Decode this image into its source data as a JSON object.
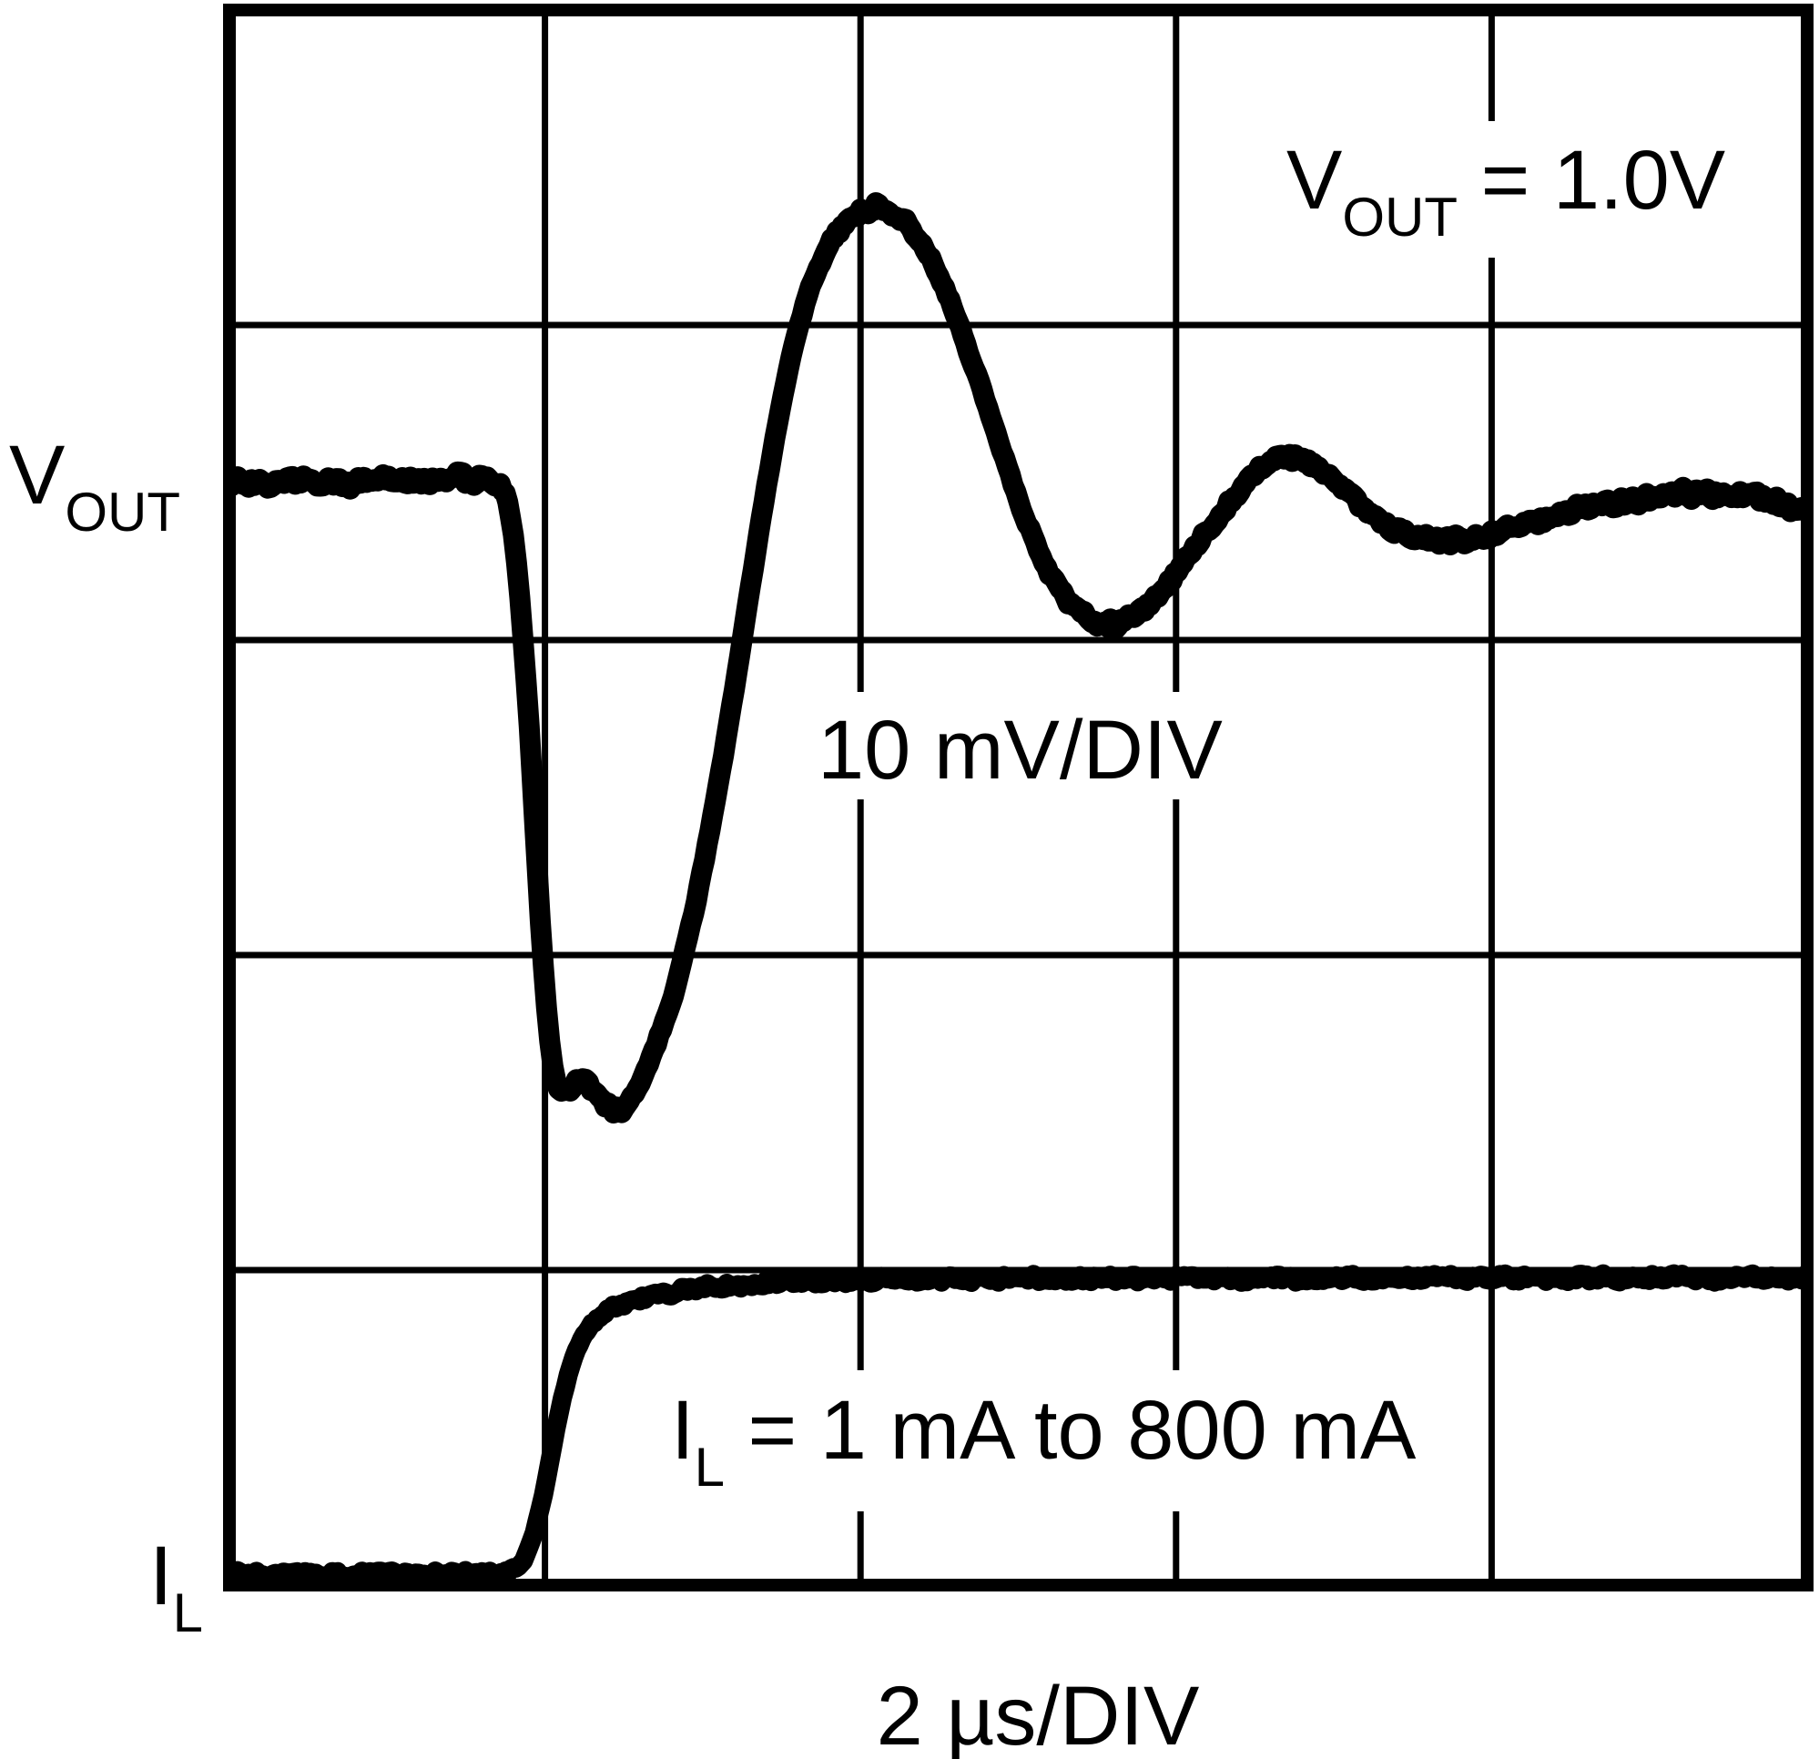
{
  "page": {
    "background": "#ffffff",
    "ink": "#000000"
  },
  "labels": {
    "vout_axis": {
      "main": "V",
      "sub": "OUT",
      "rest": ""
    },
    "il_axis": {
      "main": "I",
      "sub": "L",
      "rest": ""
    },
    "vout_annotation": {
      "main": "V",
      "sub": "OUT",
      "rest": " = 1.0V"
    },
    "scale_annotation": "10 mV/DIV",
    "il_annotation": {
      "main": "I",
      "sub": "L",
      "rest": " = 1 mA to 800 mA"
    },
    "time_scale": "2 µs/DIV"
  },
  "chart_data": {
    "type": "line",
    "title": "Load Transient Response (oscilloscope graticule)",
    "grid": {
      "columns": 5,
      "rows": 5,
      "grid_on": true
    },
    "x_axis": {
      "label": "2 µs/DIV",
      "units": "µs",
      "units_per_div": 2,
      "range": [
        0,
        10
      ]
    },
    "y_axes": [
      {
        "name": "VOUT",
        "label": "VOUT",
        "scale_per_div": "10 mV/DIV",
        "condition": "VOUT = 1.0V",
        "units": "mV deviation from 1.0 V"
      },
      {
        "name": "IL",
        "label": "IL",
        "condition": "IL = 1 mA to 800 mA",
        "units": "mA"
      }
    ],
    "series": [
      {
        "name": "VOUT",
        "units": "mV (deviation from 1.0 V)",
        "points": [
          [
            0.0,
            0.0
          ],
          [
            0.4,
            0.05
          ],
          [
            0.8,
            0.0
          ],
          [
            1.2,
            0.08
          ],
          [
            1.55,
            0.1
          ],
          [
            1.7,
            0.05
          ],
          [
            1.78,
            -0.4
          ],
          [
            1.84,
            -2.6
          ],
          [
            1.9,
            -7.5
          ],
          [
            1.97,
            -14.0
          ],
          [
            2.03,
            -18.6
          ],
          [
            2.07,
            -20.3
          ],
          [
            2.12,
            -19.8
          ],
          [
            2.18,
            -19.0
          ],
          [
            2.24,
            -18.7
          ],
          [
            2.31,
            -19.3
          ],
          [
            2.4,
            -19.9
          ],
          [
            2.47,
            -20.1
          ],
          [
            2.55,
            -19.6
          ],
          [
            2.64,
            -18.7
          ],
          [
            2.74,
            -17.4
          ],
          [
            2.85,
            -15.7
          ],
          [
            2.96,
            -13.3
          ],
          [
            3.08,
            -10.2
          ],
          [
            3.2,
            -6.6
          ],
          [
            3.32,
            -2.7
          ],
          [
            3.44,
            1.0
          ],
          [
            3.56,
            4.1
          ],
          [
            3.7,
            6.6
          ],
          [
            3.85,
            8.0
          ],
          [
            4.0,
            8.6
          ],
          [
            4.13,
            8.8
          ],
          [
            4.27,
            8.4
          ],
          [
            4.41,
            7.5
          ],
          [
            4.55,
            6.0
          ],
          [
            4.7,
            4.0
          ],
          [
            4.86,
            1.6
          ],
          [
            5.02,
            -0.9
          ],
          [
            5.18,
            -2.8
          ],
          [
            5.35,
            -4.0
          ],
          [
            5.5,
            -4.5
          ],
          [
            5.6,
            -4.6
          ],
          [
            5.75,
            -4.2
          ],
          [
            5.92,
            -3.4
          ],
          [
            6.1,
            -2.2
          ],
          [
            6.28,
            -1.0
          ],
          [
            6.46,
            0.1
          ],
          [
            6.6,
            0.7
          ],
          [
            6.72,
            0.9
          ],
          [
            6.87,
            0.6
          ],
          [
            7.02,
            0.0
          ],
          [
            7.18,
            -0.8
          ],
          [
            7.35,
            -1.4
          ],
          [
            7.55,
            -1.8
          ],
          [
            7.72,
            -1.9
          ],
          [
            7.9,
            -1.75
          ],
          [
            8.1,
            -1.45
          ],
          [
            8.4,
            -1.05
          ],
          [
            8.7,
            -0.7
          ],
          [
            9.0,
            -0.45
          ],
          [
            9.25,
            -0.33
          ],
          [
            9.45,
            -0.3
          ],
          [
            9.7,
            -0.5
          ],
          [
            10.0,
            -0.85
          ]
        ]
      },
      {
        "name": "IL",
        "units": "mA",
        "points": [
          [
            0.0,
            1
          ],
          [
            0.6,
            1
          ],
          [
            1.2,
            1
          ],
          [
            1.6,
            1
          ],
          [
            1.72,
            2
          ],
          [
            1.8,
            8
          ],
          [
            1.88,
            40
          ],
          [
            1.95,
            120
          ],
          [
            2.01,
            240
          ],
          [
            2.07,
            400
          ],
          [
            2.13,
            530
          ],
          [
            2.2,
            620
          ],
          [
            2.28,
            675
          ],
          [
            2.38,
            712
          ],
          [
            2.5,
            733
          ],
          [
            2.65,
            751
          ],
          [
            2.85,
            766
          ],
          [
            3.1,
            778
          ],
          [
            3.4,
            787
          ],
          [
            3.75,
            793
          ],
          [
            4.15,
            796
          ],
          [
            4.6,
            798
          ],
          [
            5.2,
            799
          ],
          [
            6.0,
            800
          ],
          [
            7.0,
            800
          ],
          [
            8.0,
            801
          ],
          [
            9.0,
            801
          ],
          [
            10.0,
            802
          ]
        ]
      }
    ]
  }
}
